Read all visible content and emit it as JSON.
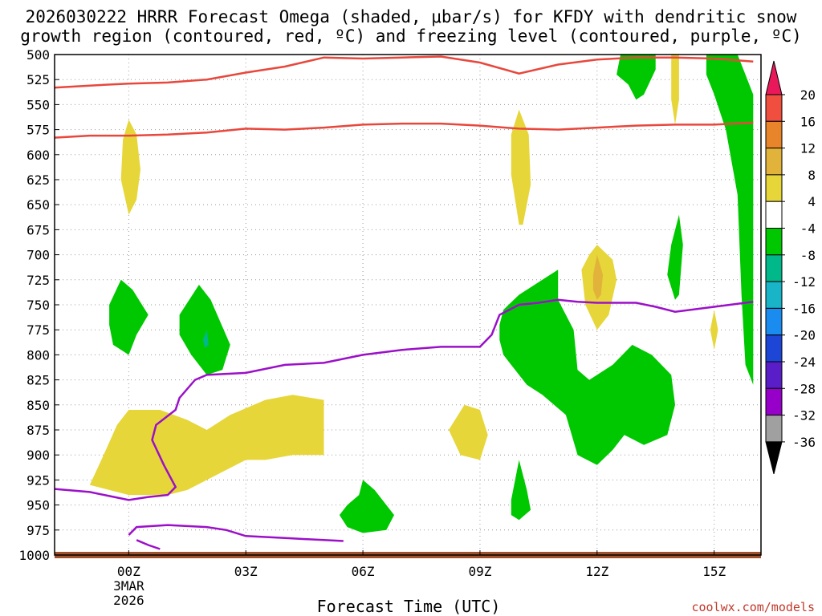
{
  "chart_data": {
    "type": "time-height",
    "title_line1": "2026030222 HRRR Forecast Omega (shaded, μbar/s) for KFDY with dendritic snow",
    "title_line2": "growth region (contoured, red, ºC) and freezing level (contoured, purple, ºC)",
    "xlabel": "Forecast Time (UTC)",
    "credit": "coolwx.com/models",
    "x_range_hours": [
      -1.9,
      16.2
    ],
    "y_range_hpa": [
      500,
      1000
    ],
    "x_ticks": [
      {
        "hour": 0,
        "label": "00Z",
        "sub1": "3MAR",
        "sub2": "2026"
      },
      {
        "hour": 3,
        "label": "03Z"
      },
      {
        "hour": 6,
        "label": "06Z"
      },
      {
        "hour": 9,
        "label": "09Z"
      },
      {
        "hour": 12,
        "label": "12Z"
      },
      {
        "hour": 15,
        "label": "15Z"
      }
    ],
    "y_ticks": [
      "500",
      "525",
      "550",
      "575",
      "600",
      "625",
      "650",
      "675",
      "700",
      "725",
      "750",
      "775",
      "800",
      "825",
      "850",
      "875",
      "900",
      "925",
      "950",
      "975",
      "1000"
    ],
    "colorbar": {
      "labels": [
        "20",
        "16",
        "12",
        "8",
        "4",
        "-4",
        "-8",
        "-12",
        "-16",
        "-20",
        "-24",
        "-28",
        "-32",
        "-36"
      ],
      "colors": [
        "#e8185a",
        "#f04e3e",
        "#e8852a",
        "#e2b33a",
        "#e6d63a",
        "#ffffff",
        "#00c800",
        "#00b88a",
        "#1ab4c8",
        "#1a8cf0",
        "#1e46d6",
        "#5a1ec8",
        "#9600c8",
        "#a0a0a0",
        "#000000"
      ]
    },
    "omega_areas": [
      {
        "name": "omega-green-top-right",
        "color": "#00c800",
        "pts": [
          [
            12.6,
            500
          ],
          [
            13.5,
            500
          ],
          [
            13.5,
            515
          ],
          [
            13.2,
            540
          ],
          [
            13.0,
            545
          ],
          [
            12.8,
            530
          ],
          [
            12.5,
            520
          ]
        ]
      },
      {
        "name": "omega-yellow-top-right",
        "color": "#e6d63a",
        "pts": [
          [
            13.9,
            500
          ],
          [
            14.1,
            500
          ],
          [
            14.1,
            545
          ],
          [
            14.0,
            570
          ],
          [
            13.9,
            545
          ]
        ]
      },
      {
        "name": "omega-green-right-edge",
        "color": "#00c800",
        "pts": [
          [
            14.8,
            500
          ],
          [
            15.6,
            500
          ],
          [
            15.8,
            520
          ],
          [
            16.0,
            540
          ],
          [
            16.0,
            760
          ],
          [
            16.0,
            830
          ],
          [
            15.8,
            810
          ],
          [
            15.7,
            740
          ],
          [
            15.6,
            640
          ],
          [
            15.3,
            575
          ],
          [
            15.0,
            540
          ],
          [
            14.8,
            520
          ]
        ]
      },
      {
        "name": "omega-yellow-00z",
        "color": "#e6d63a",
        "pts": [
          [
            0,
            565
          ],
          [
            0.2,
            580
          ],
          [
            0.3,
            615
          ],
          [
            0.2,
            645
          ],
          [
            0,
            660
          ],
          [
            -0.2,
            625
          ],
          [
            -0.15,
            585
          ]
        ]
      },
      {
        "name": "omega-yellow-10z",
        "color": "#e6d63a",
        "pts": [
          [
            10,
            555
          ],
          [
            10.25,
            580
          ],
          [
            10.3,
            630
          ],
          [
            10.1,
            670
          ],
          [
            10,
            670
          ],
          [
            9.8,
            620
          ],
          [
            9.8,
            580
          ]
        ]
      },
      {
        "name": "omega-yellow-12z",
        "color": "#e6d63a",
        "pts": [
          [
            12,
            690
          ],
          [
            12.4,
            705
          ],
          [
            12.5,
            725
          ],
          [
            12.3,
            760
          ],
          [
            12,
            775
          ],
          [
            11.7,
            750
          ],
          [
            11.6,
            715
          ],
          [
            11.8,
            700
          ]
        ]
      },
      {
        "name": "omega-orange-12z",
        "color": "#e2b33a",
        "pts": [
          [
            12,
            700
          ],
          [
            12.15,
            720
          ],
          [
            12.1,
            740
          ],
          [
            12,
            745
          ],
          [
            11.9,
            735
          ],
          [
            11.9,
            720
          ]
        ]
      },
      {
        "name": "omega-green-14z",
        "color": "#00c800",
        "pts": [
          [
            14.1,
            660
          ],
          [
            14.2,
            690
          ],
          [
            14.1,
            740
          ],
          [
            14.0,
            745
          ],
          [
            13.8,
            720
          ],
          [
            13.9,
            690
          ]
        ]
      },
      {
        "name": "omega-green-left-1",
        "color": "#00c800",
        "pts": [
          [
            -0.5,
            750
          ],
          [
            -0.2,
            725
          ],
          [
            0.1,
            735
          ],
          [
            0.5,
            760
          ],
          [
            0.2,
            780
          ],
          [
            0,
            800
          ],
          [
            -0.4,
            790
          ],
          [
            -0.5,
            770
          ]
        ]
      },
      {
        "name": "omega-green-left-2",
        "color": "#00c800",
        "pts": [
          [
            1.3,
            760
          ],
          [
            1.8,
            730
          ],
          [
            2.1,
            745
          ],
          [
            2.6,
            790
          ],
          [
            2.4,
            815
          ],
          [
            2,
            820
          ],
          [
            1.6,
            800
          ],
          [
            1.3,
            780
          ]
        ]
      },
      {
        "name": "omega-yellow-low",
        "color": "#e6d63a",
        "pts": [
          [
            -1.0,
            930
          ],
          [
            -0.7,
            905
          ],
          [
            -0.3,
            870
          ],
          [
            0,
            855
          ],
          [
            0.8,
            855
          ],
          [
            1.5,
            865
          ],
          [
            2.0,
            875
          ],
          [
            2.6,
            860
          ],
          [
            3.5,
            845
          ],
          [
            4.2,
            840
          ],
          [
            5.0,
            845
          ],
          [
            5.0,
            900
          ],
          [
            4.2,
            900
          ],
          [
            3.5,
            905
          ],
          [
            3,
            905
          ],
          [
            2.5,
            915
          ],
          [
            2,
            925
          ],
          [
            1.5,
            935
          ],
          [
            1.0,
            940
          ],
          [
            0.5,
            940
          ],
          [
            0,
            940
          ],
          [
            -0.5,
            935
          ]
        ]
      },
      {
        "name": "omega-yellow-09z",
        "color": "#e6d63a",
        "pts": [
          [
            8.2,
            875
          ],
          [
            8.6,
            850
          ],
          [
            9.0,
            855
          ],
          [
            9.2,
            880
          ],
          [
            9.0,
            905
          ],
          [
            8.5,
            900
          ]
        ]
      },
      {
        "name": "omega-green-main",
        "color": "#00c800",
        "pts": [
          [
            9.5,
            770
          ],
          [
            9.6,
            755
          ],
          [
            10.0,
            740
          ],
          [
            10.6,
            725
          ],
          [
            11.0,
            715
          ],
          [
            11.0,
            745
          ],
          [
            11.4,
            775
          ],
          [
            11.5,
            815
          ],
          [
            11.8,
            825
          ],
          [
            12.4,
            810
          ],
          [
            12.9,
            790
          ],
          [
            13.4,
            800
          ],
          [
            13.9,
            820
          ],
          [
            14.0,
            850
          ],
          [
            13.8,
            880
          ],
          [
            13.2,
            890
          ],
          [
            12.7,
            880
          ],
          [
            12.4,
            895
          ],
          [
            12,
            910
          ],
          [
            11.5,
            900
          ],
          [
            11.2,
            860
          ],
          [
            10.6,
            840
          ],
          [
            10.2,
            830
          ],
          [
            9.8,
            810
          ],
          [
            9.6,
            800
          ],
          [
            9.5,
            785
          ]
        ]
      },
      {
        "name": "omega-green-07z",
        "color": "#00c800",
        "pts": [
          [
            5.6,
            950
          ],
          [
            5.9,
            940
          ],
          [
            6.0,
            925
          ],
          [
            6.3,
            935
          ],
          [
            6.8,
            960
          ],
          [
            6.6,
            975
          ],
          [
            6.0,
            978
          ],
          [
            5.6,
            972
          ],
          [
            5.4,
            960
          ]
        ]
      },
      {
        "name": "omega-green-10z",
        "color": "#00c800",
        "pts": [
          [
            10.0,
            905
          ],
          [
            10.2,
            935
          ],
          [
            10.3,
            955
          ],
          [
            10,
            965
          ],
          [
            9.8,
            960
          ],
          [
            9.8,
            945
          ]
        ]
      },
      {
        "name": "omega-yellow-15z",
        "color": "#e6d63a",
        "pts": [
          [
            15.0,
            755
          ],
          [
            15.1,
            775
          ],
          [
            15.0,
            795
          ],
          [
            14.9,
            775
          ]
        ]
      }
    ],
    "omega_spots": [
      {
        "name": "omega-teal-spot",
        "color": "#00b88a",
        "pts": [
          [
            1.9,
            785
          ],
          [
            2.0,
            775
          ],
          [
            2.05,
            790
          ],
          [
            1.95,
            793
          ]
        ]
      }
    ],
    "dgz_contours": [
      {
        "name": "dgz-contour-upper",
        "pts": [
          [
            -1.9,
            533
          ],
          [
            -1,
            531
          ],
          [
            0,
            529
          ],
          [
            1,
            528
          ],
          [
            2,
            525
          ],
          [
            3,
            518
          ],
          [
            4,
            512
          ],
          [
            5,
            503
          ],
          [
            6,
            504
          ],
          [
            7,
            503
          ],
          [
            8,
            502
          ],
          [
            9,
            508
          ],
          [
            10,
            519
          ],
          [
            11,
            510
          ],
          [
            12,
            505
          ],
          [
            13,
            503
          ],
          [
            14,
            503
          ],
          [
            15,
            504
          ],
          [
            16,
            507
          ]
        ]
      },
      {
        "name": "dgz-contour-lower",
        "pts": [
          [
            -1.9,
            583
          ],
          [
            -1,
            581
          ],
          [
            0,
            581
          ],
          [
            1,
            580
          ],
          [
            2,
            578
          ],
          [
            3,
            574
          ],
          [
            4,
            575
          ],
          [
            5,
            573
          ],
          [
            6,
            570
          ],
          [
            7,
            569
          ],
          [
            8,
            569
          ],
          [
            9,
            571
          ],
          [
            10,
            574
          ],
          [
            11,
            575
          ],
          [
            12,
            573
          ],
          [
            13,
            571
          ],
          [
            14,
            570
          ],
          [
            15,
            570
          ],
          [
            16,
            568
          ]
        ]
      }
    ],
    "freezing_contours": [
      {
        "name": "freezing-contour-main",
        "pts": [
          [
            -1.9,
            934
          ],
          [
            -1,
            937
          ],
          [
            -0.5,
            941
          ],
          [
            0,
            945
          ],
          [
            0.5,
            942
          ],
          [
            1,
            940
          ],
          [
            1.2,
            932
          ],
          [
            0.9,
            910
          ],
          [
            0.6,
            885
          ],
          [
            0.7,
            870
          ],
          [
            1.2,
            855
          ],
          [
            1.3,
            843
          ],
          [
            1.7,
            825
          ],
          [
            2,
            820
          ],
          [
            3,
            818
          ],
          [
            4,
            810
          ],
          [
            5,
            808
          ],
          [
            6,
            800
          ],
          [
            7,
            795
          ],
          [
            8,
            792
          ],
          [
            9,
            792
          ],
          [
            9.3,
            780
          ],
          [
            9.5,
            760
          ],
          [
            10,
            750
          ],
          [
            10.5,
            748
          ],
          [
            11,
            745
          ],
          [
            11.5,
            747
          ],
          [
            12,
            748
          ],
          [
            13,
            748
          ],
          [
            13.5,
            752
          ],
          [
            14,
            757
          ],
          [
            15,
            752
          ],
          [
            16,
            747
          ]
        ]
      },
      {
        "name": "freezing-contour-low",
        "pts": [
          [
            0,
            980
          ],
          [
            0.2,
            972
          ],
          [
            1,
            970
          ],
          [
            2,
            972
          ],
          [
            2.5,
            975
          ],
          [
            3,
            981
          ],
          [
            4,
            983
          ],
          [
            5,
            985
          ],
          [
            5.5,
            986
          ]
        ]
      },
      {
        "name": "freezing-contour-tail",
        "pts": [
          [
            0.2,
            985
          ],
          [
            0.5,
            990
          ],
          [
            0.8,
            994
          ]
        ]
      }
    ]
  }
}
